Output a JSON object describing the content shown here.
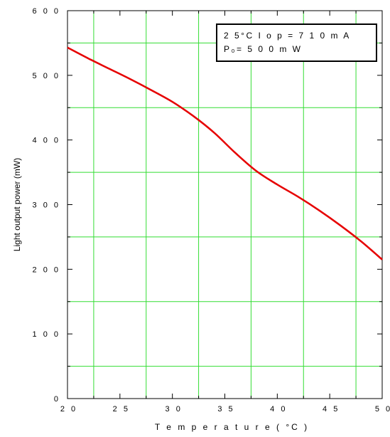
{
  "chart_data": {
    "type": "line",
    "xlabel": "T e m  p e r a t u r e   ( °C )",
    "ylabel": "Light output power (mW)",
    "xlim": [
      20,
      50
    ],
    "ylim": [
      0,
      600
    ],
    "xticks": [
      20,
      25,
      30,
      35,
      40,
      45,
      50
    ],
    "yticks": [
      0,
      100,
      200,
      300,
      400,
      500,
      600
    ],
    "xtick_labels": [
      "2 0",
      "2 5",
      "3 0",
      "3 5",
      "4 0",
      "4 5",
      "5 0"
    ],
    "ytick_labels": [
      "0",
      "1 0 0",
      "2 0 0",
      "3 0 0",
      "4 0 0",
      "5 0 0",
      "6 0 0"
    ],
    "grid": true,
    "grid_color": "#33dd33",
    "line_color": "#e60000",
    "legend_placement": "top-right",
    "annotation": {
      "line1": "2 5°C    I o p = 7 1 0 m  A",
      "line2": "P₀= 5 0 0 m  W"
    },
    "series": [
      {
        "x": [
          20,
          22,
          24,
          26,
          28,
          30,
          32,
          34,
          36,
          38,
          40,
          42,
          44,
          46,
          48,
          50
        ],
        "y": [
          543,
          526,
          510,
          494,
          477,
          459,
          437,
          411,
          380,
          352,
          331,
          312,
          291,
          268,
          243,
          215
        ]
      }
    ]
  }
}
